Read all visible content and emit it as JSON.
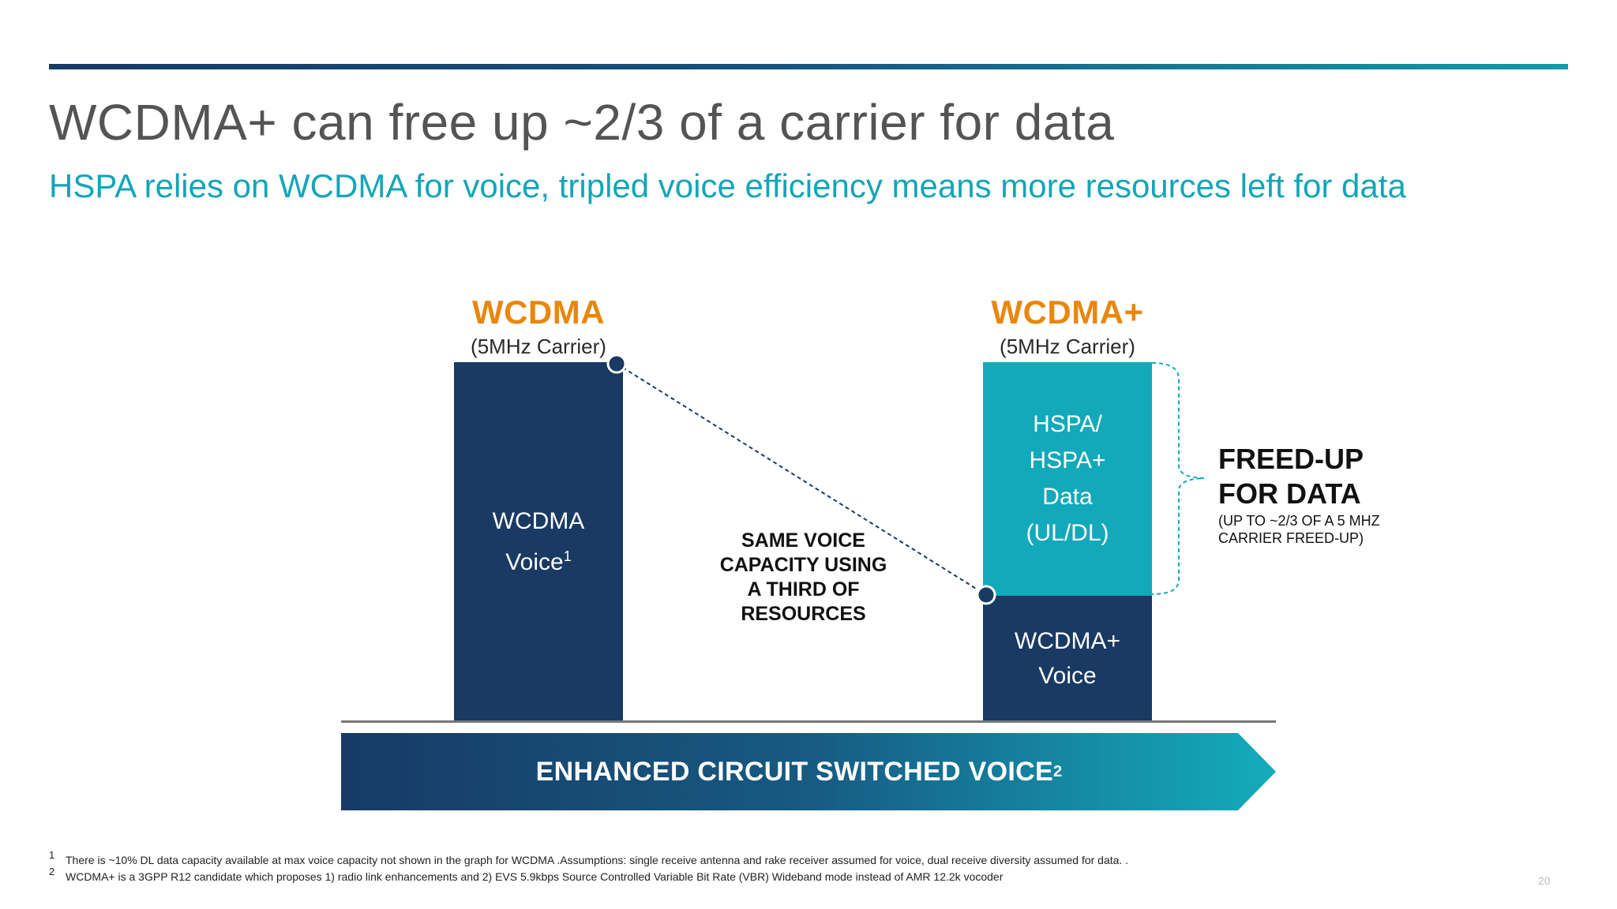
{
  "slide": {
    "title": "WCDMA+ can free up ~2/3 of a carrier for data",
    "subtitle": "HSPA relies on WCDMA for voice, tripled voice efficiency means more resources left for data",
    "page_number": "20"
  },
  "left_column": {
    "name": "WCDMA",
    "carrier": "(5MHz Carrier)",
    "voice_line1": "WCDMA",
    "voice_line2": "Voice",
    "voice_footnote_ref": "1"
  },
  "right_column": {
    "name": "WCDMA+",
    "carrier": "(5MHz Carrier)",
    "data_lines": [
      "HSPA/",
      "HSPA+",
      "Data",
      "(UL/DL)"
    ],
    "voice_line1": "WCDMA+",
    "voice_line2": "Voice",
    "voice_fraction_of_carrier": 0.35
  },
  "connector_note": [
    "SAME VOICE",
    "CAPACITY USING",
    "A THIRD OF",
    "RESOURCES"
  ],
  "freed_up": {
    "title_line1": "FREED-UP",
    "title_line2": "FOR DATA",
    "note_line1": "(UP TO ~2/3 OF A 5 MHZ",
    "note_line2": "CARRIER FREED-UP)"
  },
  "banner": {
    "label": "ENHANCED CIRCUIT SWITCHED VOICE",
    "footnote_ref": "2"
  },
  "footnotes": [
    {
      "num": "1",
      "text": "There is ~10% DL data capacity available at max voice capacity not shown in the graph for WCDMA  .Assumptions: single receive antenna and rake receiver assumed for voice, dual receive diversity assumed for data. ."
    },
    {
      "num": "2",
      "text": "WCDMA+ is a 3GPP R12 candidate which proposes 1) radio link enhancements  and 2)   EVS 5.9kbps Source Controlled Variable Bit Rate (VBR) Wideband mode instead of  AMR 12.2k  vocoder"
    }
  ],
  "colors": {
    "dark_navy": "#183a63",
    "teal": "#12a9bb",
    "accent_orange": "#e8870e",
    "subtitle_teal": "#12a6b8",
    "title_gray": "#545454"
  }
}
